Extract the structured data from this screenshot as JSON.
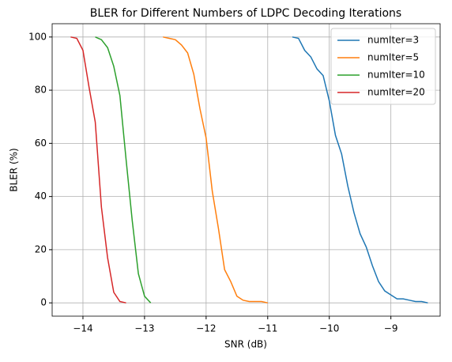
{
  "chart_data": {
    "type": "line",
    "title": "BLER for Different Numbers of LDPC Decoding Iterations",
    "x_label": "SNR (dB)",
    "y_label": "BLER (%)",
    "xlim": [
      -14.5,
      -8.2
    ],
    "ylim": [
      -5,
      105
    ],
    "xticks": [
      {
        "value": -14,
        "label": "−14"
      },
      {
        "value": -13,
        "label": "−13"
      },
      {
        "value": -12,
        "label": "−12"
      },
      {
        "value": -11,
        "label": "−11"
      },
      {
        "value": -10,
        "label": "−10"
      },
      {
        "value": -9,
        "label": "−9"
      }
    ],
    "yticks": [
      0,
      20,
      40,
      60,
      80,
      100
    ],
    "grid": true,
    "legend": "upper right",
    "series": [
      {
        "name": "numIter=3",
        "color": "#1f77b4",
        "x": [
          -10.6,
          -10.5,
          -10.4,
          -10.3,
          -10.2,
          -10.1,
          -10.0,
          -9.9,
          -9.8,
          -9.7,
          -9.6,
          -9.5,
          -9.4,
          -9.3,
          -9.2,
          -9.1,
          -9.0,
          -8.9,
          -8.8,
          -8.7,
          -8.6,
          -8.5,
          -8.4
        ],
        "values": [
          100,
          99.5,
          95,
          92.5,
          88,
          85.5,
          76,
          63,
          56,
          44,
          34,
          26,
          21,
          14,
          8,
          4.5,
          3,
          1.5,
          1.5,
          1,
          0.5,
          0.5,
          0
        ]
      },
      {
        "name": "numIter=5",
        "color": "#ff7f0e",
        "x": [
          -12.7,
          -12.6,
          -12.5,
          -12.4,
          -12.3,
          -12.2,
          -12.1,
          -12.0,
          -11.9,
          -11.8,
          -11.7,
          -11.6,
          -11.5,
          -11.4,
          -11.3,
          -11.2,
          -11.1,
          -11.0
        ],
        "values": [
          100,
          99.5,
          99,
          97,
          94,
          86,
          73,
          62,
          42,
          28,
          12.5,
          8,
          2.5,
          1,
          0.5,
          0.5,
          0.5,
          0
        ]
      },
      {
        "name": "numIter=10",
        "color": "#2ca02c",
        "x": [
          -13.8,
          -13.7,
          -13.6,
          -13.5,
          -13.4,
          -13.3,
          -13.2,
          -13.1,
          -13.0,
          -12.9
        ],
        "values": [
          100,
          99,
          96,
          89,
          78,
          54,
          31,
          11,
          2.5,
          0
        ]
      },
      {
        "name": "numIter=20",
        "color": "#d62728",
        "x": [
          -14.2,
          -14.1,
          -14.0,
          -13.9,
          -13.8,
          -13.7,
          -13.6,
          -13.5,
          -13.4,
          -13.3
        ],
        "values": [
          100,
          99.5,
          95,
          81,
          68,
          36,
          17,
          4,
          0.5,
          0
        ]
      }
    ]
  }
}
